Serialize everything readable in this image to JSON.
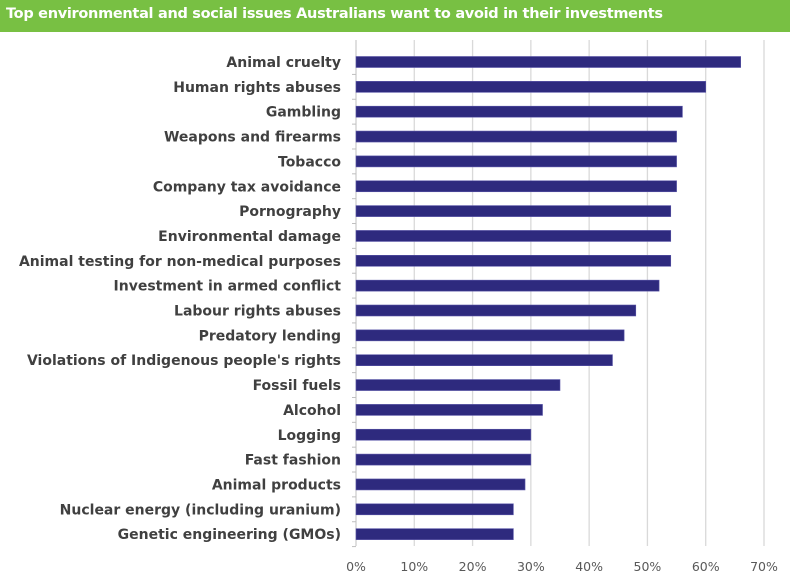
{
  "chart_data": {
    "type": "bar",
    "orientation": "horizontal",
    "title": "Top environmental and social issues Australians want to avoid in their investments",
    "categories": [
      "Animal cruelty",
      "Human rights abuses",
      "Gambling",
      "Weapons and firearms",
      "Tobacco",
      "Company tax avoidance",
      "Pornography",
      "Environmental damage",
      "Animal testing for non-medical purposes",
      "Investment in armed conflict",
      "Labour rights abuses",
      "Predatory lending",
      "Violations of Indigenous people's rights",
      "Fossil fuels",
      "Alcohol",
      "Logging",
      "Fast fashion",
      "Animal products",
      "Nuclear energy (including uranium)",
      "Genetic engineering (GMOs)"
    ],
    "values": [
      66,
      60,
      56,
      55,
      55,
      55,
      54,
      54,
      54,
      52,
      48,
      46,
      44,
      35,
      32,
      30,
      30,
      29,
      27,
      27
    ],
    "xlim": [
      0,
      70
    ],
    "xticks": [
      "0%",
      "10%",
      "20%",
      "30%",
      "40%",
      "50%",
      "60%",
      "70%"
    ],
    "xlabel": "",
    "ylabel": "",
    "grid": "vertical",
    "legend": "none",
    "colors": {
      "bar": "#2e2a7e",
      "title_bar": "#78c043",
      "grid": "#d9d9d9"
    }
  }
}
